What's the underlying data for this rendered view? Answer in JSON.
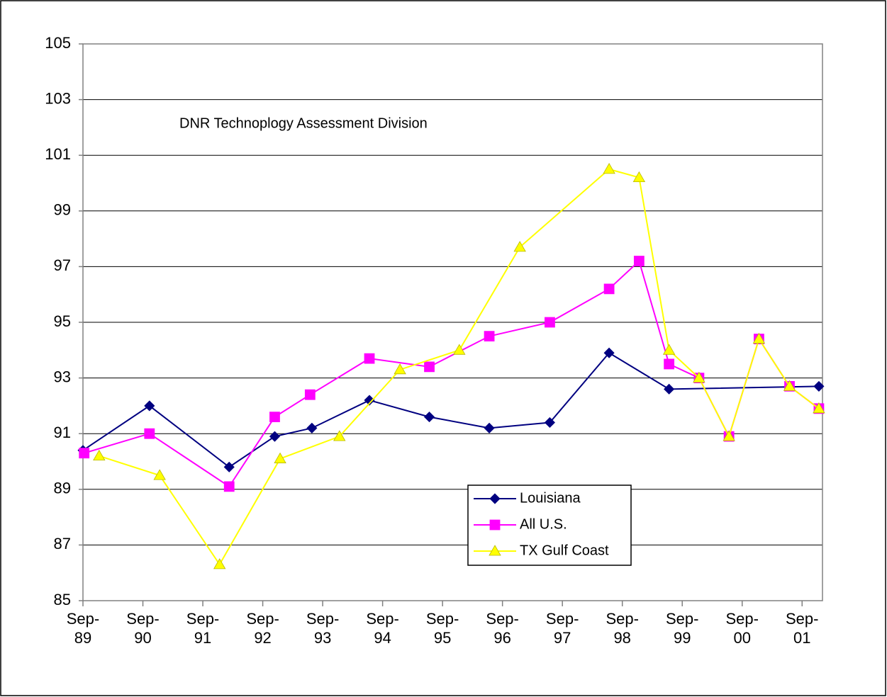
{
  "chart_data": {
    "type": "line",
    "annotation": "DNR Technoplogy Assessment Division",
    "xlim": [
      1989.67,
      2002.01
    ],
    "xticks": [
      {
        "value": 1989.67,
        "label": "Sep-89"
      },
      {
        "value": 1990.67,
        "label": "Sep-90"
      },
      {
        "value": 1991.67,
        "label": "Sep-91"
      },
      {
        "value": 1992.67,
        "label": "Sep-92"
      },
      {
        "value": 1993.67,
        "label": "Sep-93"
      },
      {
        "value": 1994.67,
        "label": "Sep-94"
      },
      {
        "value": 1995.67,
        "label": "Sep-95"
      },
      {
        "value": 1996.67,
        "label": "Sep-96"
      },
      {
        "value": 1997.67,
        "label": "Sep-97"
      },
      {
        "value": 1998.67,
        "label": "Sep-98"
      },
      {
        "value": 1999.67,
        "label": "Sep-99"
      },
      {
        "value": 2000.67,
        "label": "Sep-00"
      },
      {
        "value": 2001.67,
        "label": "Sep-01"
      }
    ],
    "ylim": [
      85,
      105
    ],
    "yticks": [
      85,
      87,
      89,
      91,
      93,
      95,
      97,
      99,
      101,
      103,
      105
    ],
    "grid": true,
    "series": [
      {
        "name": "Louisiana",
        "color": "#000080",
        "marker": "diamond",
        "x": [
          1989.67,
          1990.78,
          1992.11,
          1992.87,
          1993.49,
          1994.45,
          1995.45,
          1996.45,
          1997.46,
          1998.45,
          1999.45,
          2001.95
        ],
        "values": [
          90.4,
          92.0,
          89.8,
          90.9,
          91.2,
          92.2,
          91.6,
          91.2,
          91.4,
          93.9,
          92.6,
          92.7
        ]
      },
      {
        "name": "All U.S.",
        "color": "#ff00ff",
        "marker": "square",
        "x": [
          1989.69,
          1990.78,
          1992.11,
          1992.87,
          1993.46,
          1994.45,
          1995.45,
          1996.45,
          1997.46,
          1998.45,
          1998.95,
          1999.45,
          1999.95,
          2000.45,
          2000.95,
          2001.46,
          2001.95
        ],
        "values": [
          90.3,
          91.0,
          89.1,
          91.6,
          92.4,
          93.7,
          93.4,
          94.5,
          95.0,
          96.2,
          97.2,
          93.5,
          93.0,
          90.9,
          94.4,
          92.7,
          91.9
        ]
      },
      {
        "name": "TX Gulf Coast",
        "color": "#ffff00",
        "marker": "triangle",
        "x": [
          1989.94,
          1990.95,
          1991.95,
          1992.96,
          1993.95,
          1994.96,
          1995.95,
          1996.96,
          1998.45,
          1998.95,
          1999.45,
          1999.95,
          2000.45,
          2000.95,
          2001.46,
          2001.95
        ],
        "values": [
          90.2,
          89.5,
          86.3,
          90.1,
          90.9,
          93.3,
          94.0,
          97.7,
          100.5,
          100.2,
          94.0,
          93.0,
          90.9,
          94.4,
          92.7,
          91.9
        ]
      }
    ]
  }
}
